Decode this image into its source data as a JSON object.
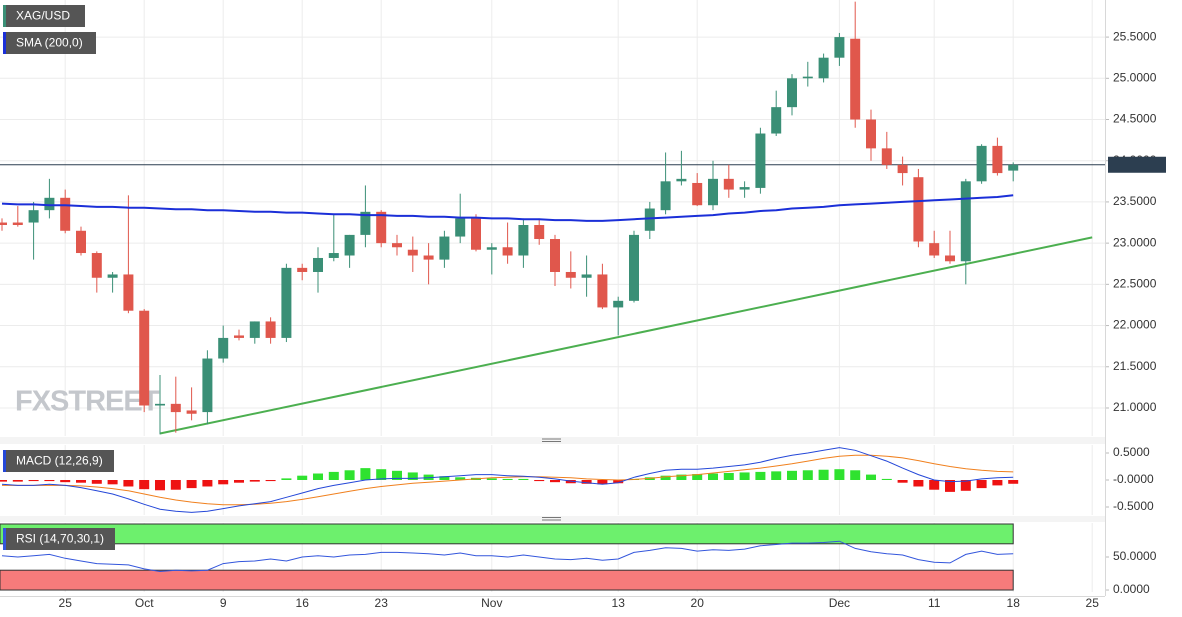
{
  "chart_data": [
    {
      "type": "candlestick",
      "title": "XAG/USD",
      "watermark": "FXSTREET",
      "grid": true,
      "categories": [
        null,
        null,
        null,
        null,
        "25",
        null,
        null,
        null,
        null,
        "Oct",
        null,
        null,
        null,
        null,
        "9",
        null,
        null,
        null,
        null,
        "16",
        null,
        null,
        null,
        null,
        "23",
        null,
        null,
        null,
        null,
        null,
        null,
        "Nov",
        null,
        null,
        null,
        null,
        null,
        null,
        null,
        "13",
        null,
        null,
        null,
        null,
        "20",
        null,
        null,
        null,
        null,
        null,
        null,
        null,
        null,
        "Dec",
        null,
        null,
        null,
        null,
        null,
        "11",
        null,
        null,
        null,
        null,
        "18",
        null,
        null,
        null,
        null,
        "25"
      ],
      "open": [
        23.25,
        23.25,
        23.25,
        23.4,
        23.55,
        23.15,
        22.88,
        22.58,
        22.62,
        22.18,
        21.03,
        21.05,
        20.97,
        20.95,
        21.6,
        21.88,
        21.85,
        22.05,
        21.85,
        22.7,
        22.65,
        22.82,
        22.85,
        23.1,
        23.38,
        23.0,
        22.92,
        22.85,
        22.8,
        23.08,
        23.3,
        22.92,
        22.95,
        22.85,
        23.22,
        23.05,
        22.65,
        22.58,
        22.62,
        22.22,
        22.3,
        23.15,
        23.4,
        23.75,
        23.73,
        23.46,
        23.78,
        23.65,
        23.67,
        24.33,
        24.65,
        25.0,
        25.0,
        25.25,
        25.48,
        24.5,
        24.15,
        23.95,
        23.8,
        23.0,
        22.85,
        22.78,
        23.75,
        24.18,
        23.88,
        null,
        null,
        null,
        null,
        null
      ],
      "high": [
        23.3,
        23.45,
        23.5,
        23.78,
        23.65,
        23.2,
        22.9,
        22.65,
        23.58,
        22.2,
        21.4,
        21.38,
        21.25,
        21.7,
        22.0,
        21.95,
        22.05,
        22.1,
        22.75,
        22.75,
        22.95,
        23.35,
        23.1,
        23.7,
        23.4,
        23.1,
        23.08,
        23.0,
        23.15,
        23.6,
        23.35,
        23.0,
        23.25,
        23.3,
        23.3,
        23.1,
        22.9,
        22.85,
        22.75,
        22.35,
        23.15,
        23.5,
        24.1,
        24.12,
        23.85,
        24.0,
        23.95,
        23.75,
        24.4,
        24.85,
        25.05,
        25.2,
        25.3,
        25.55,
        25.93,
        24.62,
        24.35,
        24.05,
        23.9,
        23.15,
        23.15,
        23.78,
        24.2,
        24.28,
        23.98,
        null,
        null,
        null,
        null,
        null
      ],
      "low": [
        23.15,
        23.2,
        22.8,
        23.3,
        23.12,
        22.85,
        22.4,
        22.4,
        22.15,
        20.95,
        20.68,
        20.7,
        20.85,
        20.8,
        21.55,
        21.82,
        21.78,
        21.78,
        21.8,
        22.55,
        22.4,
        22.78,
        22.7,
        22.95,
        22.95,
        22.85,
        22.65,
        22.5,
        22.7,
        23.0,
        22.9,
        22.62,
        22.75,
        22.7,
        22.98,
        22.48,
        22.45,
        22.35,
        22.2,
        21.88,
        22.28,
        23.05,
        23.35,
        23.7,
        23.45,
        23.4,
        23.55,
        23.55,
        23.6,
        24.3,
        24.55,
        24.9,
        24.95,
        25.15,
        24.4,
        24.0,
        23.9,
        23.7,
        22.95,
        22.82,
        22.75,
        22.5,
        23.72,
        23.82,
        23.75,
        null,
        null,
        null,
        null,
        null
      ],
      "close": [
        23.22,
        23.22,
        23.4,
        23.55,
        23.15,
        22.88,
        22.58,
        22.62,
        22.18,
        21.03,
        21.05,
        20.95,
        20.93,
        21.6,
        21.85,
        21.85,
        22.05,
        21.85,
        22.7,
        22.65,
        22.82,
        22.88,
        23.1,
        23.38,
        23.0,
        22.95,
        22.85,
        22.8,
        23.08,
        23.3,
        22.92,
        22.95,
        22.85,
        23.22,
        23.05,
        22.65,
        22.58,
        22.62,
        22.22,
        22.3,
        23.1,
        23.42,
        23.75,
        23.78,
        23.46,
        23.78,
        23.65,
        23.68,
        24.33,
        24.65,
        25.0,
        25.02,
        25.25,
        25.5,
        24.5,
        24.15,
        23.95,
        23.85,
        23.02,
        22.85,
        22.78,
        23.75,
        24.18,
        23.85,
        23.951,
        null,
        null,
        null,
        null,
        null
      ],
      "colors": {
        "up": "#3a8f76",
        "down": "#e0574c"
      },
      "ylim": [
        20.66,
        25.95
      ],
      "yticks": [
        {
          "value": 21.0,
          "label": "21.0000"
        },
        {
          "value": 21.5,
          "label": "21.5000"
        },
        {
          "value": 22.0,
          "label": "22.0000"
        },
        {
          "value": 22.5,
          "label": "22.5000"
        },
        {
          "value": 23.0,
          "label": "23.0000"
        },
        {
          "value": 23.5,
          "label": "23.5000"
        },
        {
          "value": 24.0,
          "label": "24.0000"
        },
        {
          "value": 24.5,
          "label": "24.5000"
        },
        {
          "value": 25.0,
          "label": "25.0000"
        },
        {
          "value": 25.5,
          "label": "25.5000"
        }
      ],
      "last_price": {
        "value": 23.951,
        "label": "23.95100"
      },
      "series": [
        {
          "name": "SMA (200,0)",
          "color": "#1b2fd8",
          "values": [
            23.48,
            23.47,
            23.47,
            23.46,
            23.46,
            23.45,
            23.44,
            23.44,
            23.43,
            23.43,
            23.42,
            23.41,
            23.41,
            23.4,
            23.4,
            23.39,
            23.38,
            23.38,
            23.37,
            23.37,
            23.36,
            23.35,
            23.35,
            23.34,
            23.34,
            23.33,
            23.33,
            23.32,
            23.32,
            23.31,
            23.31,
            23.3,
            23.3,
            23.29,
            23.29,
            23.28,
            23.28,
            23.27,
            23.27,
            23.28,
            23.29,
            23.3,
            23.31,
            23.32,
            23.33,
            23.34,
            23.36,
            23.37,
            23.39,
            23.4,
            23.42,
            23.43,
            23.44,
            23.46,
            23.47,
            23.48,
            23.49,
            23.5,
            23.51,
            23.52,
            23.53,
            23.54,
            23.55,
            23.56,
            23.58,
            null,
            null,
            null,
            null,
            null
          ]
        }
      ],
      "trendline": {
        "color": "#4caf50",
        "from": {
          "index": 10,
          "value": 20.69
        },
        "to": {
          "index": 69,
          "value": 23.07
        }
      }
    },
    {
      "type": "macd",
      "title": "MACD (12,26,9)",
      "ylim": [
        -0.648,
        0.648
      ],
      "yticks": [
        {
          "value": 0.5,
          "label": "0.5000"
        },
        {
          "value": 0,
          "label": "-0.0000"
        },
        {
          "value": -0.5,
          "label": "-0.5000"
        }
      ],
      "histogram": {
        "positive": "#2fe22f",
        "negative": "#ee1212",
        "values": [
          -0.03,
          -0.03,
          -0.02,
          -0.02,
          -0.04,
          -0.05,
          -0.07,
          -0.08,
          -0.12,
          -0.17,
          -0.19,
          -0.18,
          -0.15,
          -0.12,
          -0.08,
          -0.05,
          -0.03,
          -0.02,
          0.03,
          0.08,
          0.12,
          0.15,
          0.18,
          0.22,
          0.2,
          0.17,
          0.14,
          0.1,
          0.07,
          0.05,
          0.04,
          0.03,
          0.02,
          0.02,
          -0.02,
          -0.04,
          -0.06,
          -0.07,
          -0.08,
          -0.06,
          0.02,
          0.05,
          0.08,
          0.1,
          0.11,
          0.12,
          0.13,
          0.14,
          0.15,
          0.16,
          0.17,
          0.18,
          0.19,
          0.2,
          0.18,
          0.1,
          0.02,
          -0.05,
          -0.12,
          -0.18,
          -0.22,
          -0.2,
          -0.15,
          -0.1,
          -0.07
        ]
      },
      "macd": {
        "color": "#2447d8",
        "values": [
          -0.08,
          -0.1,
          -0.1,
          -0.08,
          -0.1,
          -0.14,
          -0.2,
          -0.26,
          -0.35,
          -0.45,
          -0.54,
          -0.58,
          -0.6,
          -0.58,
          -0.53,
          -0.48,
          -0.44,
          -0.4,
          -0.32,
          -0.24,
          -0.16,
          -0.1,
          -0.05,
          0.0,
          0.02,
          0.03,
          0.03,
          0.04,
          0.06,
          0.08,
          0.1,
          0.1,
          0.08,
          0.07,
          0.05,
          0.02,
          -0.02,
          -0.05,
          -0.08,
          -0.05,
          0.05,
          0.12,
          0.18,
          0.2,
          0.2,
          0.22,
          0.25,
          0.28,
          0.33,
          0.4,
          0.46,
          0.5,
          0.55,
          0.6,
          0.55,
          0.45,
          0.35,
          0.22,
          0.1,
          0.0,
          -0.03,
          -0.02,
          0.02,
          0.04,
          0.05
        ]
      },
      "signal": {
        "color": "#f0801e",
        "values": [
          -0.1,
          -0.1,
          -0.1,
          -0.1,
          -0.1,
          -0.11,
          -0.13,
          -0.16,
          -0.2,
          -0.26,
          -0.32,
          -0.37,
          -0.41,
          -0.44,
          -0.46,
          -0.46,
          -0.45,
          -0.43,
          -0.4,
          -0.36,
          -0.31,
          -0.26,
          -0.21,
          -0.16,
          -0.12,
          -0.09,
          -0.06,
          -0.04,
          -0.02,
          0.0,
          0.02,
          0.04,
          0.05,
          0.06,
          0.06,
          0.05,
          0.04,
          0.02,
          0.01,
          0.0,
          0.01,
          0.03,
          0.06,
          0.08,
          0.1,
          0.13,
          0.16,
          0.19,
          0.22,
          0.26,
          0.3,
          0.35,
          0.4,
          0.44,
          0.46,
          0.46,
          0.44,
          0.41,
          0.36,
          0.3,
          0.25,
          0.21,
          0.18,
          0.16,
          0.15
        ]
      }
    },
    {
      "type": "rsi",
      "title": "RSI (14,70,30,1)",
      "ylim": [
        -3,
        101.5
      ],
      "yticks": [
        {
          "value": 50,
          "label": "50.0000"
        },
        {
          "value": 0,
          "label": "0.0000"
        }
      ],
      "overbought": 70,
      "oversold": 30,
      "zone_colors": {
        "overbought": "#6df06d",
        "oversold": "#f77b7b"
      },
      "color": "#3356dc",
      "values": [
        52,
        50,
        52,
        54,
        48,
        44,
        40,
        39,
        38,
        32,
        28,
        30,
        29,
        30,
        40,
        43,
        44,
        47,
        44,
        50,
        52,
        50,
        53,
        54,
        57,
        57,
        56,
        55,
        53,
        56,
        52,
        52,
        50,
        53,
        50,
        47,
        46,
        48,
        45,
        47,
        57,
        60,
        64,
        63,
        59,
        61,
        60,
        62,
        67,
        69,
        71,
        71,
        72,
        74,
        63,
        58,
        55,
        53,
        46,
        42,
        41,
        54,
        59,
        54,
        55
      ]
    }
  ]
}
